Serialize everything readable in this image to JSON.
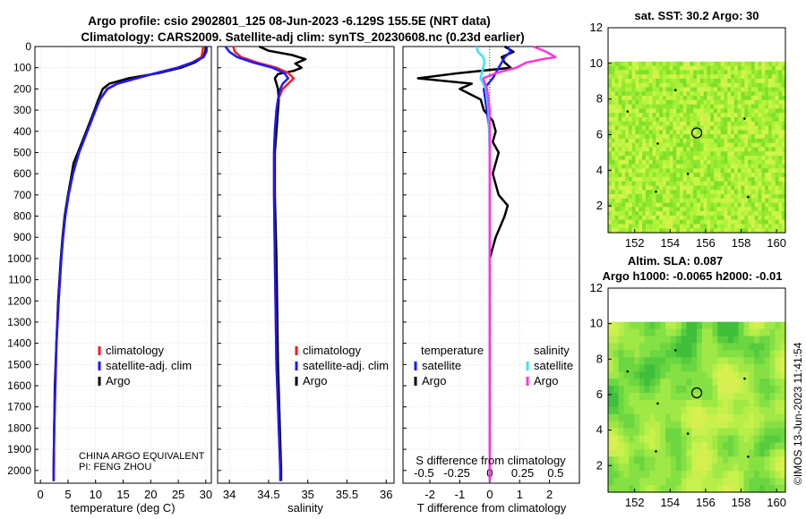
{
  "header": {
    "title_line1": "Argo profile: csio 2902801_125 08-Jun-2023 -6.129S 155.5E (NRT data)",
    "title_line2": "Climatology: CARS2009. Satellite-adj clim: synTS_20230608.nc (0.23d earlier)"
  },
  "colors": {
    "climatology": "#ff1a1a",
    "satellite_adj": "#1a1aff",
    "argo": "#000000",
    "satellite_sal": "#33e6ff",
    "argo_sal": "#ff33dd",
    "grid": "#d0d0d0"
  },
  "chart_data": [
    {
      "type": "line",
      "id": "temperature",
      "xlabel": "temperature (deg C)",
      "ylabel": "",
      "xlim": [
        -1,
        31
      ],
      "ylim": [
        2060,
        0
      ],
      "xticks": [
        0,
        5,
        10,
        15,
        20,
        25,
        30
      ],
      "yticks": [
        0,
        100,
        200,
        300,
        400,
        500,
        600,
        700,
        800,
        900,
        1000,
        1100,
        1200,
        1300,
        1400,
        1500,
        1600,
        1700,
        1800,
        1900,
        2000
      ],
      "legend": [
        "climatology",
        "satellite-adj. clim",
        "Argo"
      ],
      "annotations": [
        "CHINA ARGO EQUIVALENT",
        "PI: FENG ZHOU"
      ],
      "series": [
        {
          "name": "climatology",
          "depth": [
            0,
            25,
            50,
            75,
            100,
            125,
            150,
            175,
            200,
            250,
            300,
            400,
            500,
            600,
            700,
            800,
            900,
            1000,
            1200,
            1400,
            1600,
            1800,
            2000,
            2050
          ],
          "values": [
            29.5,
            29.4,
            29.2,
            27.5,
            24.8,
            21.0,
            17.5,
            14.0,
            12.2,
            10.8,
            10.0,
            8.5,
            7.0,
            5.9,
            5.1,
            4.5,
            4.1,
            3.8,
            3.3,
            2.9,
            2.7,
            2.5,
            2.4,
            2.4
          ]
        },
        {
          "name": "satellite-adj. clim",
          "depth": [
            0,
            25,
            50,
            75,
            100,
            125,
            150,
            175,
            200,
            250,
            300,
            400,
            500,
            600,
            700,
            800,
            900,
            1000,
            1200,
            1400,
            1600,
            1800,
            2000,
            2050
          ],
          "values": [
            30.2,
            30.1,
            29.6,
            27.6,
            24.9,
            21.0,
            17.4,
            13.9,
            12.1,
            10.8,
            10.0,
            8.5,
            7.0,
            5.9,
            5.1,
            4.5,
            4.1,
            3.8,
            3.3,
            2.9,
            2.7,
            2.5,
            2.4,
            2.4
          ]
        },
        {
          "name": "Argo",
          "depth": [
            0,
            25,
            50,
            75,
            100,
            125,
            150,
            175,
            200,
            250,
            300,
            400,
            500,
            550,
            600,
            700,
            800,
            900,
            1000,
            1200,
            1400,
            1600,
            1800,
            2000,
            2050
          ],
          "values": [
            30.0,
            29.9,
            29.5,
            28.0,
            25.5,
            21.5,
            16.0,
            12.5,
            11.3,
            10.5,
            9.8,
            8.3,
            6.8,
            6.0,
            5.7,
            5.0,
            4.4,
            4.0,
            3.7,
            3.2,
            2.9,
            2.6,
            2.5,
            2.4,
            2.4
          ]
        }
      ]
    },
    {
      "type": "line",
      "id": "salinity",
      "xlabel": "salinity",
      "xlim": [
        33.85,
        36.1
      ],
      "ylim": [
        2060,
        0
      ],
      "xticks": [
        34,
        34.5,
        35,
        35.5,
        36
      ],
      "legend": [
        "climatology",
        "satellite-adj. clim",
        "Argo"
      ],
      "series": [
        {
          "name": "climatology",
          "depth": [
            0,
            25,
            50,
            75,
            100,
            125,
            150,
            175,
            200,
            250,
            300,
            400,
            500,
            700,
            1000,
            1500,
            2000,
            2050
          ],
          "values": [
            34.05,
            34.07,
            34.15,
            34.35,
            34.6,
            34.75,
            34.82,
            34.75,
            34.68,
            34.62,
            34.6,
            34.58,
            34.57,
            34.57,
            34.58,
            34.6,
            34.65,
            34.65
          ]
        },
        {
          "name": "satellite-adj. clim",
          "depth": [
            0,
            25,
            50,
            75,
            100,
            125,
            150,
            175,
            200,
            250,
            300,
            400,
            500,
            700,
            1000,
            1500,
            2000,
            2050
          ],
          "values": [
            33.95,
            34.0,
            34.1,
            34.3,
            34.55,
            34.7,
            34.75,
            34.68,
            34.65,
            34.62,
            34.6,
            34.58,
            34.57,
            34.57,
            34.58,
            34.6,
            34.65,
            34.65
          ]
        },
        {
          "name": "Argo",
          "depth": [
            0,
            20,
            40,
            60,
            80,
            100,
            115,
            130,
            150,
            175,
            200,
            250,
            300,
            400,
            500,
            700,
            1000,
            1500,
            2000,
            2050
          ],
          "values": [
            34.38,
            34.5,
            34.8,
            34.97,
            34.84,
            34.92,
            34.82,
            34.62,
            34.58,
            34.6,
            34.62,
            34.63,
            34.62,
            34.6,
            34.58,
            34.58,
            34.6,
            34.62,
            34.66,
            34.66
          ]
        }
      ]
    },
    {
      "type": "line",
      "id": "difference",
      "xlabel": "T difference from climatology",
      "xlabel_top": "S difference from climatology",
      "xlim": [
        -2.9,
        3.0
      ],
      "ylim": [
        2060,
        0
      ],
      "xticks": [
        -2,
        -1,
        0,
        1,
        2
      ],
      "sal_ticks": [
        -0.5,
        -0.25,
        0,
        0.25,
        0.5
      ],
      "legend_temperature": {
        "heading": "temperature",
        "items": [
          "satellite",
          "Argo"
        ]
      },
      "legend_salinity": {
        "heading": "salinity",
        "items": [
          "satellite",
          "Argo"
        ]
      },
      "series": [
        {
          "name": "T satellite",
          "depth": [
            0,
            25,
            50,
            75,
            100,
            150,
            200,
            300,
            400,
            600,
            800,
            1000,
            1500,
            2000,
            2050
          ],
          "values": [
            0.6,
            0.7,
            0.5,
            0.4,
            0.3,
            0.1,
            -0.2,
            -0.1,
            0.0,
            0.0,
            0.0,
            0.0,
            0.0,
            0.0,
            0.0
          ]
        },
        {
          "name": "T Argo",
          "depth": [
            0,
            25,
            50,
            75,
            100,
            125,
            150,
            175,
            200,
            250,
            300,
            350,
            400,
            450,
            500,
            550,
            600,
            700,
            750,
            800,
            900,
            1000,
            1200,
            1500,
            2000,
            2050
          ],
          "values": [
            0.5,
            0.8,
            0.4,
            0.5,
            0.7,
            -1.0,
            -2.4,
            -0.6,
            -1.0,
            -0.3,
            -0.2,
            0.1,
            0.2,
            0.1,
            0.3,
            0.2,
            0.1,
            0.3,
            0.6,
            0.5,
            0.2,
            0.0,
            0.0,
            0.0,
            0.0,
            0.0
          ]
        },
        {
          "name": "S satellite",
          "depth": [
            0,
            25,
            50,
            75,
            100,
            150,
            200,
            300,
            500,
            700,
            1000,
            1500,
            2000,
            2050
          ],
          "values": [
            -0.1,
            -0.09,
            -0.05,
            -0.04,
            -0.05,
            -0.07,
            -0.03,
            -0.01,
            0.0,
            0.0,
            0.0,
            0.0,
            0.0,
            0.0
          ]
        },
        {
          "name": "S Argo",
          "depth": [
            0,
            25,
            50,
            60,
            75,
            100,
            125,
            150,
            200,
            300,
            500,
            700,
            1000,
            1500,
            2000,
            2050
          ],
          "values": [
            0.33,
            0.43,
            0.5,
            0.4,
            0.28,
            0.2,
            0.05,
            -0.05,
            -0.02,
            0.0,
            0.0,
            0.0,
            0.0,
            0.0,
            0.0,
            0.0
          ]
        }
      ]
    },
    {
      "type": "heatmap",
      "id": "sst_map",
      "title": "sat. SST: 30.2 Argo: 30",
      "xticks": [
        152,
        154,
        156,
        158,
        160
      ],
      "yticks": [
        2,
        4,
        6,
        8,
        10,
        12
      ],
      "xlim": [
        150.5,
        160.5
      ],
      "ylim": [
        0.5,
        12
      ],
      "data_top": 10.1,
      "argo_lon": 155.5,
      "argo_lat": 6.1
    },
    {
      "type": "heatmap",
      "id": "sla_map",
      "title_line1": "Altim. SLA: 0.087",
      "title_line2": "Argo h1000: -0.0065 h2000: -0.01",
      "xticks": [
        152,
        154,
        156,
        158,
        160
      ],
      "yticks": [
        2,
        4,
        6,
        8,
        10,
        12
      ],
      "xlim": [
        150.5,
        160.5
      ],
      "ylim": [
        0.5,
        12
      ],
      "data_top": 10.1,
      "argo_lon": 155.5,
      "argo_lat": 6.1
    }
  ],
  "footer": {
    "stamp": "©IMOS 13-Jun-2023 11:41:54"
  }
}
